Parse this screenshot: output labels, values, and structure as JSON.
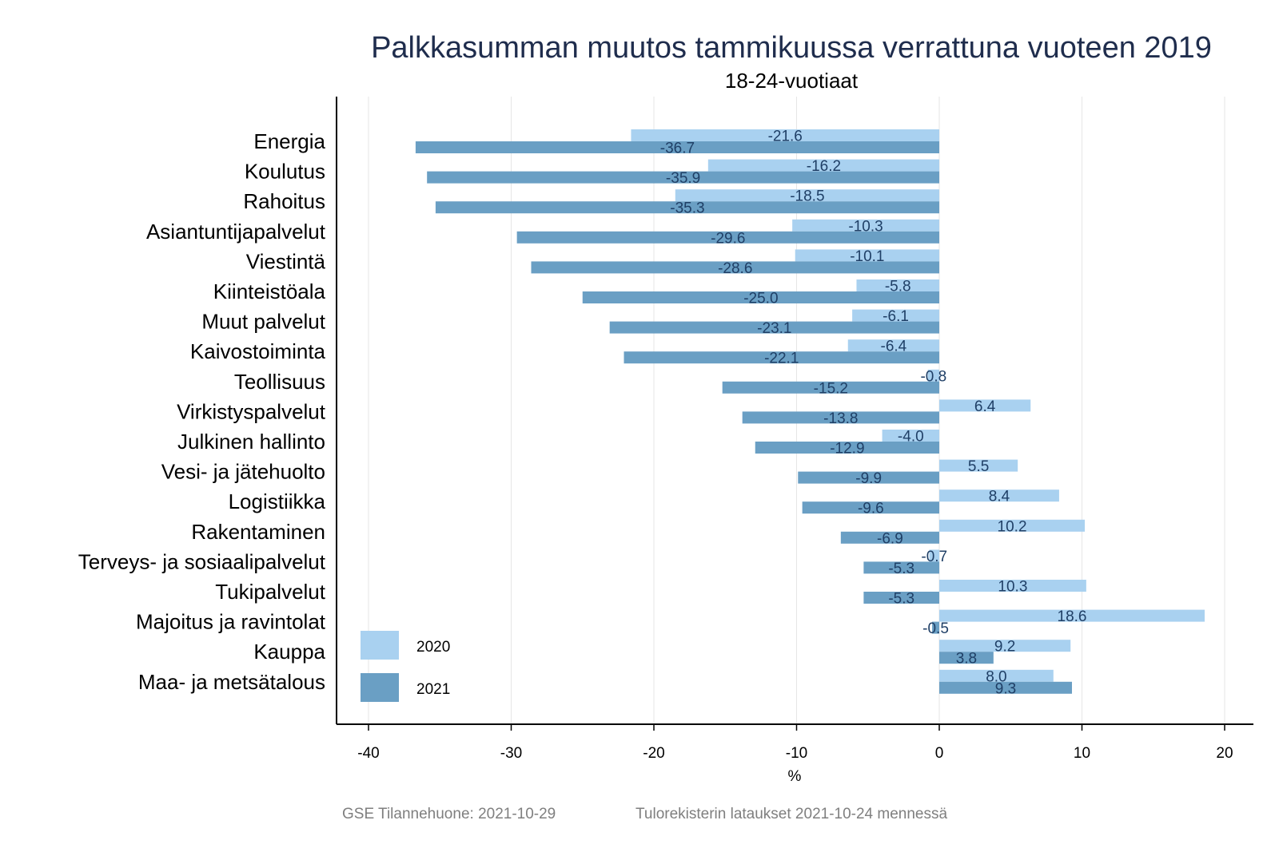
{
  "chart_data": {
    "type": "bar",
    "orientation": "horizontal",
    "title": "Palkkasumman muutos tammikuussa verrattuna vuoteen 2019",
    "subtitle": "18-24-vuotiaat",
    "xlabel": "%",
    "ylabel": "",
    "xlim": [
      -42,
      22
    ],
    "xticks": [
      -40,
      -30,
      -20,
      -10,
      0,
      10,
      20
    ],
    "grid": true,
    "legend_position": "bottom-left",
    "categories": [
      "Energia",
      "Koulutus",
      "Rahoitus",
      "Asiantuntijapalvelut",
      "Viestintä",
      "Kiinteistöala",
      "Muut palvelut",
      "Kaivostoiminta",
      "Teollisuus",
      "Virkistyspalvelut",
      "Julkinen hallinto",
      "Vesi- ja jätehuolto",
      "Logistiikka",
      "Rakentaminen",
      "Terveys- ja sosiaalipalvelut",
      "Tukipalvelut",
      "Majoitus ja ravintolat",
      "Kauppa",
      "Maa- ja metsätalous"
    ],
    "series": [
      {
        "name": "2020",
        "color": "#a9d1f0",
        "values": [
          -21.6,
          -16.2,
          -18.5,
          -10.3,
          -10.1,
          -5.8,
          -6.1,
          -6.4,
          -0.8,
          6.4,
          -4.0,
          5.5,
          8.4,
          10.2,
          -0.7,
          10.3,
          18.6,
          9.2,
          8.0
        ]
      },
      {
        "name": "2021",
        "color": "#6a9fc4",
        "values": [
          -36.7,
          -35.9,
          -35.3,
          -29.6,
          -28.6,
          -25.0,
          -23.1,
          -22.1,
          -15.2,
          -13.8,
          -12.9,
          -9.9,
          -9.6,
          -6.9,
          -5.3,
          -5.3,
          -0.5,
          3.8,
          9.3
        ]
      }
    ]
  },
  "footer": {
    "left": "GSE Tilannehuone: 2021-10-29",
    "right": "Tulorekisterin lataukset 2021-10-24 mennessä"
  }
}
